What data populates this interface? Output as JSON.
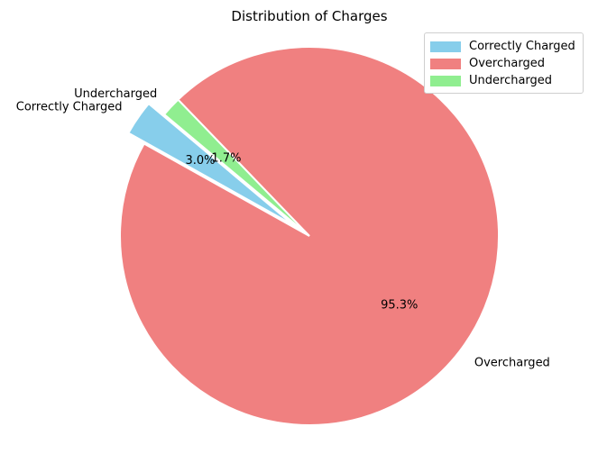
{
  "chart_data": {
    "type": "pie",
    "title": "Distribution of Charges",
    "slices": [
      {
        "label": "Correctly Charged",
        "value": 3.0,
        "pct_label": "3.0%",
        "color": "#87CEEB",
        "exploded": true
      },
      {
        "label": "Overcharged",
        "value": 95.3,
        "pct_label": "95.3%",
        "color": "#F08080",
        "exploded": false
      },
      {
        "label": "Undercharged",
        "value": 1.7,
        "pct_label": "1.7%",
        "color": "#90EE90",
        "exploded": false
      }
    ],
    "legend": {
      "position": "upper-right",
      "entries": [
        "Correctly Charged",
        "Overcharged",
        "Undercharged"
      ]
    },
    "start_angle_deg": 140,
    "counterclock": true
  }
}
